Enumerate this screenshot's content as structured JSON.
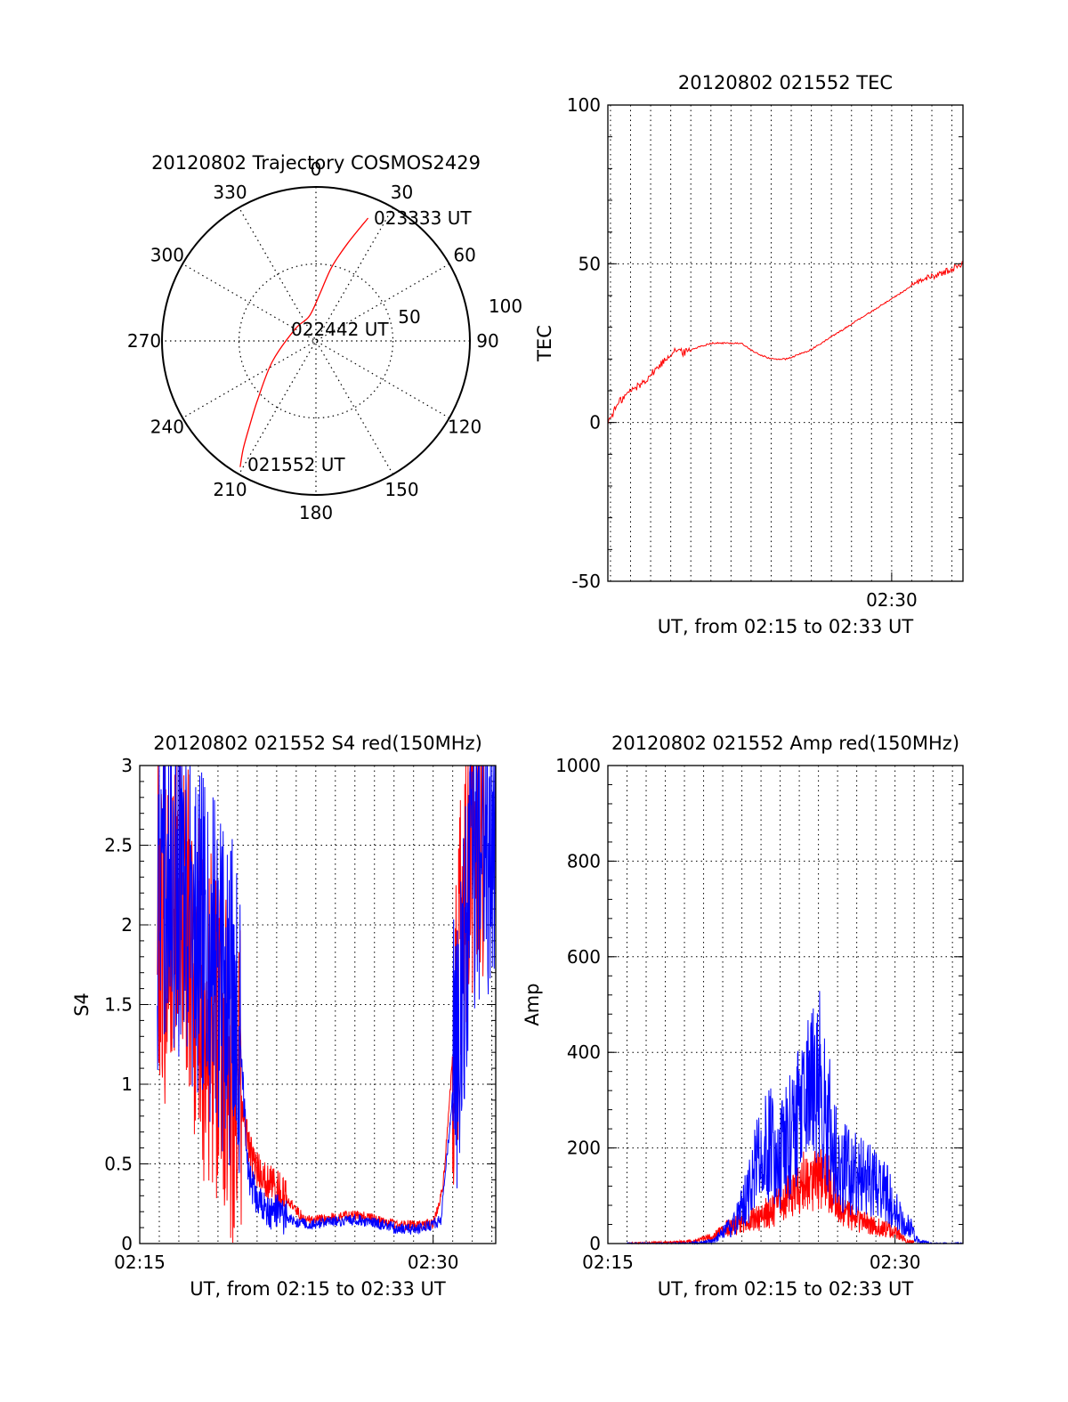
{
  "chart_data": [
    {
      "type": "polar",
      "title": "20120802 Trajectory COSMOS2429",
      "azimuth_labels": [
        "0",
        "30",
        "60",
        "90",
        "120",
        "150",
        "180",
        "210",
        "240",
        "270",
        "300",
        "330"
      ],
      "radius_labels": [
        "50",
        "100"
      ],
      "rlim": [
        0,
        100
      ],
      "grid": true,
      "series": [
        {
          "color": "#ff0000",
          "points": [
            {
              "az": 211,
              "el": 4
            },
            {
              "az": 214,
              "el": 14
            },
            {
              "az": 218,
              "el": 27
            },
            {
              "az": 225,
              "el": 42
            },
            {
              "az": 245,
              "el": 62
            },
            {
              "az": 300,
              "el": 76
            },
            {
              "az": 345,
              "el": 75
            },
            {
              "az": 5,
              "el": 62
            },
            {
              "az": 12,
              "el": 46
            },
            {
              "az": 18,
              "el": 30
            },
            {
              "az": 23,
              "el": 12
            }
          ]
        }
      ],
      "annotations": [
        "023333 UT",
        "022442 UT",
        "021552 UT"
      ]
    },
    {
      "type": "line",
      "title": "20120802 021552 TEC",
      "xlabel": "UT, from 02:15 to 02:33 UT",
      "ylabel": "TEC",
      "xlim": [
        15.87,
        33.55
      ],
      "ylim": [
        -50,
        100
      ],
      "yticks": [
        -50,
        0,
        50,
        100
      ],
      "xtick_labels": [
        "02:30"
      ],
      "series": [
        {
          "color": "#ff0000",
          "x": [
            15.87,
            16.2,
            16.5,
            17.0,
            17.5,
            18.0,
            18.6,
            19.2,
            19.6,
            20.0,
            21.0,
            22.0,
            22.5,
            23.2,
            24.0,
            24.8,
            26.0,
            27.5,
            29.0,
            30.5,
            31.5,
            32.5,
            33.55
          ],
          "y": [
            0,
            4,
            7,
            10,
            12,
            15,
            19,
            23,
            22,
            23,
            25,
            25,
            25,
            22,
            20,
            20,
            23,
            29,
            35,
            41,
            45,
            47,
            50
          ]
        }
      ]
    },
    {
      "type": "line",
      "title": "20120802 021552 S4 red(150MHz)",
      "xlabel": "UT, from 02:15 to 02:33 UT",
      "ylabel": "S4",
      "xlim": [
        15.0,
        33.2
      ],
      "ylim": [
        0,
        3
      ],
      "yticks": [
        0,
        0.5,
        1,
        1.5,
        2,
        2.5,
        3
      ],
      "xtick_labels": [
        "02:15",
        "02:30"
      ],
      "series": [
        {
          "color": "#ff0000",
          "x": [
            15.9,
            16.4,
            17.0,
            17.6,
            18.2,
            18.8,
            19.5,
            20.1,
            20.8,
            21.5,
            22.4,
            23.4,
            24.5,
            25.6,
            26.8,
            28.0,
            29.0,
            30.0,
            30.5,
            31.2,
            31.8,
            32.6
          ],
          "y": [
            2.2,
            1.9,
            2.4,
            1.8,
            1.5,
            1.4,
            1.2,
            0.9,
            0.5,
            0.4,
            0.3,
            0.15,
            0.15,
            0.18,
            0.16,
            0.12,
            0.11,
            0.12,
            0.35,
            1.5,
            2.4,
            2.5
          ]
        },
        {
          "color": "#0000ff",
          "x": [
            15.9,
            16.4,
            17.0,
            17.6,
            18.2,
            18.8,
            19.5,
            20.1,
            20.6,
            21.2,
            22.0,
            23.0,
            24.0,
            25.0,
            26.0,
            27.0,
            28.0,
            29.0,
            30.0,
            30.4,
            30.9,
            31.4,
            32.0,
            32.6,
            33.2
          ],
          "y": [
            2.0,
            2.4,
            2.2,
            2.0,
            1.9,
            1.8,
            1.6,
            1.3,
            0.4,
            0.22,
            0.2,
            0.13,
            0.12,
            0.14,
            0.15,
            0.13,
            0.1,
            0.09,
            0.12,
            0.15,
            0.8,
            1.6,
            2.4,
            2.6,
            2.5
          ]
        }
      ]
    },
    {
      "type": "line",
      "title": "20120802 021552 Amp red(150MHz)",
      "xlabel": "UT, from 02:15 to 02:33 UT",
      "ylabel": "Amp",
      "xlim": [
        15.0,
        33.55
      ],
      "ylim": [
        0,
        1000
      ],
      "yticks": [
        0,
        200,
        400,
        600,
        800,
        1000
      ],
      "xtick_labels": [
        "02:15",
        "02:30"
      ],
      "series": [
        {
          "color": "#ff0000",
          "x": [
            16.0,
            18.0,
            19.5,
            20.5,
            21.2,
            22.0,
            22.8,
            23.6,
            24.4,
            25.2,
            26.0,
            26.6,
            27.2,
            27.8,
            28.4,
            29.0,
            29.6,
            30.2,
            30.6,
            31.0
          ],
          "y": [
            0,
            2,
            5,
            15,
            30,
            45,
            55,
            70,
            100,
            130,
            145,
            120,
            70,
            55,
            45,
            35,
            30,
            20,
            5,
            2
          ]
        },
        {
          "color": "#0000ff",
          "x": [
            16.0,
            19.0,
            20.5,
            21.6,
            22.4,
            23.0,
            23.6,
            24.0,
            24.6,
            25.2,
            25.8,
            26.2,
            26.6,
            27.0,
            27.6,
            28.2,
            28.8,
            29.4,
            30.0,
            30.4,
            30.8,
            31.2,
            32.0,
            33.55
          ],
          "y": [
            0,
            0,
            5,
            40,
            110,
            200,
            220,
            180,
            230,
            270,
            320,
            340,
            240,
            170,
            150,
            140,
            130,
            120,
            70,
            50,
            35,
            5,
            0,
            0
          ]
        }
      ]
    }
  ]
}
